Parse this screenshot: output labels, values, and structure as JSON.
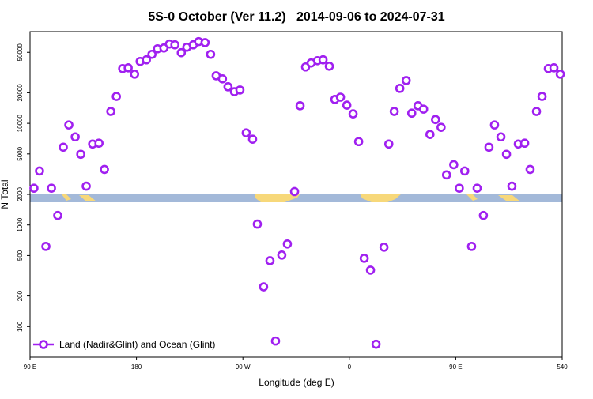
{
  "chart_data": {
    "type": "scatter",
    "title": "5S-0 October (Ver 11.2)   2014-09-06 to 2024-07-31",
    "xlabel": "Longitude (deg E)",
    "ylabel": "N Total",
    "x": [
      93.3,
      98.0,
      103.4,
      108.1,
      113.4,
      118.1,
      122.8,
      128.2,
      132.9,
      137.5,
      142.9,
      148.3,
      152.9,
      158.3,
      163.0,
      168.3,
      173.0,
      178.4,
      183.1,
      188.4,
      193.1,
      197.8,
      203.2,
      207.9,
      212.5,
      217.9,
      222.6,
      228.0,
      232.6,
      238.0,
      242.7,
      247.4,
      252.7,
      257.4,
      262.8,
      267.5,
      272.8,
      278.2,
      282.2,
      287.5,
      292.9,
      297.6,
      302.9,
      307.6,
      313.7,
      318.4,
      323.0,
      327.7,
      333.1,
      337.8,
      343.1,
      347.8,
      352.5,
      357.9,
      363.2,
      367.9,
      372.6,
      377.9,
      382.6,
      389.3,
      393.4,
      398.0,
      402.7,
      408.1,
      412.8,
      418.1,
      422.8,
      428.2,
      432.9,
      437.6,
      442.2,
      448.3,
      453.0,
      457.6,
      463.4,
      468.1,
      473.4,
      478.1,
      482.8,
      488.2,
      492.9,
      497.5,
      502.9,
      508.3,
      512.9,
      518.3,
      523.0,
      528.3,
      533.0,
      538.4
    ],
    "series": [
      {
        "name": "Land (Nadir&Glint) and Ocean (Glint)",
        "color": "#a020f0",
        "values": [
          2300,
          3400,
          615,
          2300,
          1240,
          5830,
          9650,
          7360,
          4960,
          2410,
          6260,
          6380,
          3520,
          13100,
          18400,
          34600,
          35200,
          30500,
          40700,
          42200,
          47800,
          54200,
          55200,
          60400,
          59300,
          49600,
          56200,
          59300,
          63800,
          62400,
          47800,
          29400,
          27400,
          22900,
          20500,
          21300,
          8060,
          6980,
          1020,
          246,
          445,
          72,
          505,
          650,
          2130,
          14900,
          35900,
          39300,
          41400,
          42200,
          36500,
          17200,
          18100,
          15100,
          12400,
          6610,
          470,
          359,
          67,
          604,
          6260,
          13100,
          22100,
          26400,
          12600,
          14900,
          13800,
          7780,
          10900,
          9140,
          3110,
          3920,
          2300,
          3400,
          615,
          2300,
          1240,
          5830,
          9650,
          7360,
          4960,
          2410,
          6260,
          6380,
          3520,
          13100,
          18400,
          34600,
          35200,
          30500
        ]
      }
    ],
    "xlim": [
      90,
      540
    ],
    "xticks": [
      {
        "value": 90,
        "label": "90 E"
      },
      180,
      {
        "value": 270,
        "label": "90 W"
      },
      {
        "value": 360,
        "label": "0"
      },
      {
        "value": 450,
        "label": "90 E"
      },
      540
    ],
    "ylim": [
      50,
      80000
    ],
    "yticks": [
      100,
      200,
      500,
      1000,
      2000,
      5000,
      10000,
      20000,
      50000
    ],
    "log_y": true,
    "legend": "lower left"
  }
}
